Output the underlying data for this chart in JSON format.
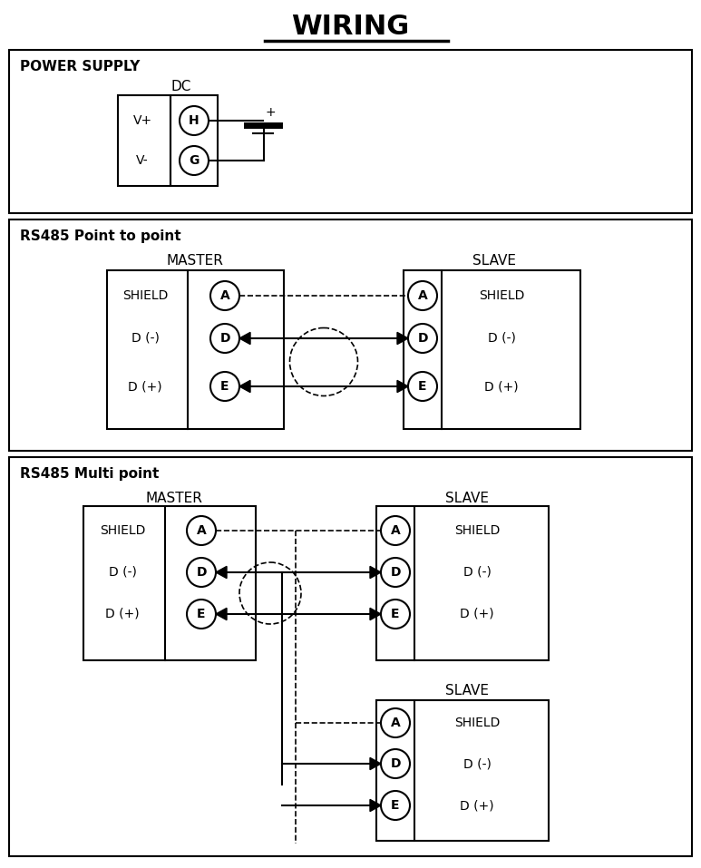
{
  "title": "WIRING",
  "bg_color": "#ffffff",
  "border_color": "#000000",
  "section1_label": "POWER SUPPLY",
  "section2_label": "RS485 Point to point",
  "section3_label": "RS485 Multi point",
  "ps_dc_label": "DC",
  "ps_vplus": "V+",
  "ps_vminus": "V-",
  "ps_H": "H",
  "ps_G": "G",
  "master_label": "MASTER",
  "slave_label": "SLAVE",
  "shield_label": "SHIELD",
  "d_minus": "D (-)",
  "d_plus": "D (+)",
  "circle_labels": [
    "A",
    "D",
    "E"
  ]
}
